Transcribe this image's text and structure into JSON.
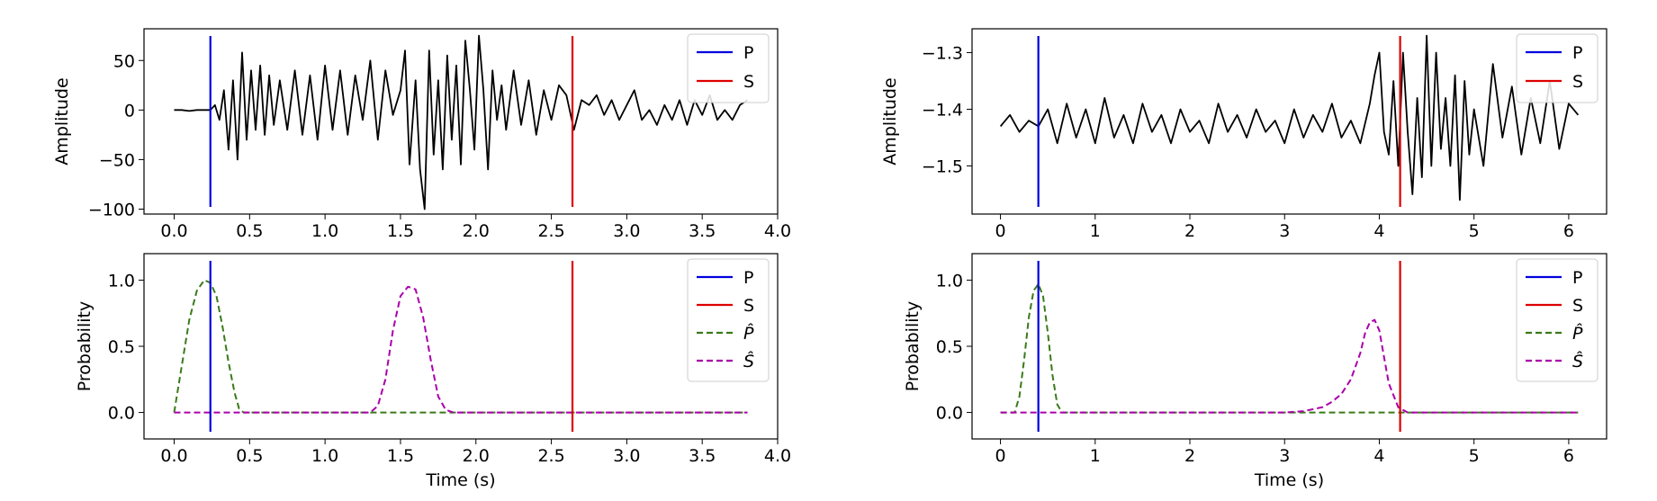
{
  "colors": {
    "trace": "#000000",
    "p_pick": "#0000dd",
    "s_pick": "#dd0000",
    "p_hat": "#3a7a1a",
    "s_hat": "#aa00aa"
  },
  "legend_labels": {
    "P": "P",
    "S": "S",
    "P_hat": "P̂",
    "S_hat": "Ŝ"
  },
  "chart_data": [
    {
      "type": "line",
      "ylabel": "Amplitude",
      "xlabel": "",
      "xlim": [
        -0.2,
        4.0
      ],
      "ylim": [
        -105,
        82
      ],
      "xticks": [
        0.0,
        0.5,
        1.0,
        1.5,
        2.0,
        2.5,
        3.0,
        3.5,
        4.0
      ],
      "xtick_labels": [
        "0.0",
        "0.5",
        "1.0",
        "1.5",
        "2.0",
        "2.5",
        "3.0",
        "3.5",
        "4.0"
      ],
      "yticks": [
        50,
        0,
        -50,
        -100
      ],
      "ytick_labels": [
        "50",
        "0",
        "−50",
        "−100"
      ],
      "picks": {
        "P": 0.24,
        "S": 2.64
      },
      "legend": [
        "P",
        "S"
      ],
      "legend_position": "top-right",
      "series": [
        {
          "x": [
            0.0,
            0.05,
            0.1,
            0.15,
            0.2,
            0.24,
            0.27,
            0.3,
            0.33,
            0.36,
            0.39,
            0.42,
            0.45,
            0.48,
            0.51,
            0.54,
            0.57,
            0.6,
            0.63,
            0.66,
            0.7,
            0.75,
            0.8,
            0.85,
            0.9,
            0.95,
            1.0,
            1.05,
            1.1,
            1.15,
            1.2,
            1.25,
            1.3,
            1.35,
            1.4,
            1.45,
            1.5,
            1.53,
            1.56,
            1.6,
            1.63,
            1.66,
            1.69,
            1.72,
            1.75,
            1.78,
            1.81,
            1.84,
            1.87,
            1.9,
            1.93,
            1.96,
            1.99,
            2.02,
            2.05,
            2.08,
            2.11,
            2.14,
            2.17,
            2.2,
            2.25,
            2.3,
            2.35,
            2.4,
            2.45,
            2.5,
            2.55,
            2.6,
            2.65,
            2.7,
            2.75,
            2.8,
            2.85,
            2.9,
            2.95,
            3.0,
            3.05,
            3.1,
            3.15,
            3.2,
            3.25,
            3.3,
            3.35,
            3.4,
            3.45,
            3.5,
            3.55,
            3.6,
            3.65,
            3.7,
            3.75,
            3.8
          ],
          "y": [
            0,
            0,
            -1,
            0,
            0,
            0,
            5,
            -10,
            20,
            -40,
            30,
            -50,
            58,
            -30,
            40,
            -20,
            45,
            -25,
            35,
            -15,
            30,
            -20,
            40,
            -25,
            35,
            -30,
            45,
            -20,
            40,
            -25,
            35,
            -10,
            50,
            -30,
            40,
            -5,
            20,
            60,
            -55,
            30,
            -60,
            -100,
            60,
            -45,
            30,
            -60,
            55,
            -30,
            45,
            -55,
            70,
            20,
            -40,
            75,
            20,
            -60,
            40,
            -10,
            25,
            -20,
            40,
            -15,
            30,
            -25,
            20,
            -10,
            25,
            15,
            -20,
            10,
            5,
            15,
            -5,
            10,
            -10,
            5,
            20,
            -10,
            0,
            -15,
            5,
            -10,
            10,
            -15,
            10,
            -5,
            15,
            -10,
            0,
            -10,
            5,
            10
          ]
        }
      ]
    },
    {
      "type": "line",
      "ylabel": "Amplitude",
      "xlabel": "",
      "xlim": [
        -0.3,
        6.4
      ],
      "ylim": [
        -1.585,
        -1.258
      ],
      "xticks": [
        0,
        1,
        2,
        3,
        4,
        5,
        6
      ],
      "xtick_labels": [
        "0",
        "1",
        "2",
        "3",
        "4",
        "5",
        "6"
      ],
      "yticks": [
        -1.3,
        -1.4,
        -1.5
      ],
      "ytick_labels": [
        "−1.3",
        "−1.4",
        "−1.5"
      ],
      "picks": {
        "P": 0.4,
        "S": 4.22
      },
      "legend": [
        "P",
        "S"
      ],
      "legend_position": "top-right",
      "series": [
        {
          "x": [
            0.0,
            0.1,
            0.2,
            0.3,
            0.4,
            0.5,
            0.6,
            0.7,
            0.8,
            0.9,
            1.0,
            1.1,
            1.2,
            1.3,
            1.4,
            1.5,
            1.6,
            1.7,
            1.8,
            1.9,
            2.0,
            2.1,
            2.2,
            2.3,
            2.4,
            2.5,
            2.6,
            2.7,
            2.8,
            2.9,
            3.0,
            3.1,
            3.2,
            3.3,
            3.4,
            3.5,
            3.6,
            3.7,
            3.8,
            3.9,
            3.95,
            4.0,
            4.05,
            4.1,
            4.15,
            4.2,
            4.25,
            4.3,
            4.35,
            4.4,
            4.45,
            4.5,
            4.55,
            4.6,
            4.65,
            4.7,
            4.75,
            4.8,
            4.85,
            4.9,
            4.95,
            5.0,
            5.1,
            5.2,
            5.3,
            5.4,
            5.5,
            5.6,
            5.7,
            5.8,
            5.9,
            6.0,
            6.1
          ],
          "y": [
            -1.43,
            -1.41,
            -1.44,
            -1.42,
            -1.43,
            -1.4,
            -1.46,
            -1.39,
            -1.45,
            -1.4,
            -1.46,
            -1.38,
            -1.45,
            -1.41,
            -1.46,
            -1.39,
            -1.44,
            -1.41,
            -1.46,
            -1.4,
            -1.44,
            -1.42,
            -1.46,
            -1.39,
            -1.44,
            -1.41,
            -1.45,
            -1.4,
            -1.44,
            -1.42,
            -1.46,
            -1.4,
            -1.45,
            -1.41,
            -1.44,
            -1.39,
            -1.45,
            -1.42,
            -1.46,
            -1.39,
            -1.34,
            -1.3,
            -1.44,
            -1.48,
            -1.35,
            -1.5,
            -1.3,
            -1.44,
            -1.55,
            -1.38,
            -1.52,
            -1.27,
            -1.5,
            -1.3,
            -1.47,
            -1.38,
            -1.5,
            -1.34,
            -1.56,
            -1.35,
            -1.48,
            -1.4,
            -1.5,
            -1.32,
            -1.45,
            -1.36,
            -1.48,
            -1.38,
            -1.46,
            -1.35,
            -1.47,
            -1.39,
            -1.41
          ]
        }
      ]
    },
    {
      "type": "line",
      "ylabel": "Probability",
      "xlabel": "Time (s)",
      "xlim": [
        -0.2,
        4.0
      ],
      "ylim": [
        -0.2,
        1.2
      ],
      "xticks": [
        0.0,
        0.5,
        1.0,
        1.5,
        2.0,
        2.5,
        3.0,
        3.5,
        4.0
      ],
      "xtick_labels": [
        "0.0",
        "0.5",
        "1.0",
        "1.5",
        "2.0",
        "2.5",
        "3.0",
        "3.5",
        "4.0"
      ],
      "yticks": [
        1.0,
        0.5,
        0.0
      ],
      "ytick_labels": [
        "1.0",
        "0.5",
        "0.0"
      ],
      "picks": {
        "P": 0.24,
        "S": 2.64
      },
      "legend": [
        "P",
        "S",
        "P_hat",
        "S_hat"
      ],
      "legend_position": "top-right",
      "series": [
        {
          "name": "P_hat",
          "x": [
            0.0,
            0.05,
            0.1,
            0.15,
            0.2,
            0.24,
            0.28,
            0.32,
            0.36,
            0.4,
            0.43,
            0.46,
            0.5,
            1.0,
            2.0,
            3.0,
            3.8
          ],
          "y": [
            0.0,
            0.35,
            0.7,
            0.92,
            1.0,
            0.98,
            0.88,
            0.65,
            0.38,
            0.15,
            0.03,
            0.0,
            0.0,
            0.0,
            0.0,
            0.0,
            0.0
          ]
        },
        {
          "name": "S_hat",
          "x": [
            0.0,
            0.5,
            1.0,
            1.3,
            1.35,
            1.4,
            1.45,
            1.5,
            1.55,
            1.6,
            1.65,
            1.7,
            1.75,
            1.8,
            1.85,
            2.0,
            3.0,
            3.8
          ],
          "y": [
            0.0,
            0.0,
            0.0,
            0.0,
            0.05,
            0.25,
            0.62,
            0.88,
            0.95,
            0.93,
            0.72,
            0.4,
            0.12,
            0.02,
            0.0,
            0.0,
            0.0,
            0.0
          ]
        }
      ]
    },
    {
      "type": "line",
      "ylabel": "Probability",
      "xlabel": "Time (s)",
      "xlim": [
        -0.3,
        6.4
      ],
      "ylim": [
        -0.2,
        1.2
      ],
      "xticks": [
        0,
        1,
        2,
        3,
        4,
        5,
        6
      ],
      "xtick_labels": [
        "0",
        "1",
        "2",
        "3",
        "4",
        "5",
        "6"
      ],
      "yticks": [
        1.0,
        0.5,
        0.0
      ],
      "ytick_labels": [
        "1.0",
        "0.5",
        "0.0"
      ],
      "picks": {
        "P": 0.4,
        "S": 4.22
      },
      "legend": [
        "P",
        "S",
        "P_hat",
        "S_hat"
      ],
      "legend_position": "top-right",
      "series": [
        {
          "name": "P_hat",
          "x": [
            0.0,
            0.15,
            0.2,
            0.25,
            0.3,
            0.35,
            0.4,
            0.45,
            0.5,
            0.55,
            0.6,
            0.65,
            1.0,
            3.0,
            6.1
          ],
          "y": [
            0.0,
            0.0,
            0.12,
            0.4,
            0.72,
            0.92,
            0.97,
            0.88,
            0.6,
            0.28,
            0.06,
            0.0,
            0.0,
            0.0,
            0.0
          ]
        },
        {
          "name": "S_hat",
          "x": [
            0.0,
            1.0,
            2.0,
            3.0,
            3.2,
            3.4,
            3.5,
            3.6,
            3.7,
            3.8,
            3.85,
            3.9,
            3.95,
            4.0,
            4.05,
            4.1,
            4.2,
            4.3,
            4.5,
            5.0,
            6.1
          ],
          "y": [
            0.0,
            0.0,
            0.0,
            0.0,
            0.01,
            0.04,
            0.08,
            0.14,
            0.25,
            0.45,
            0.6,
            0.68,
            0.7,
            0.62,
            0.42,
            0.22,
            0.04,
            0.0,
            0.0,
            0.0,
            0.0
          ]
        }
      ]
    }
  ]
}
